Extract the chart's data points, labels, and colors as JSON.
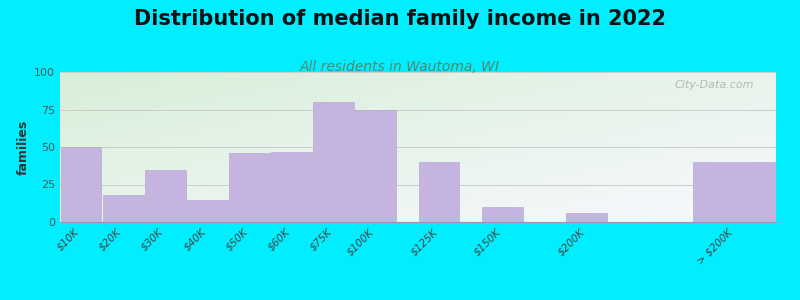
{
  "categories": [
    "$10K",
    "$20K",
    "$30K",
    "$40K",
    "$50K",
    "$60K",
    "$75K",
    "$100K",
    "$125K",
    "$150K",
    "$200K",
    "> $200K"
  ],
  "values": [
    50,
    18,
    35,
    15,
    46,
    47,
    80,
    75,
    40,
    10,
    6,
    40
  ],
  "x_positions": [
    0,
    1,
    2,
    3,
    4,
    5,
    6,
    7,
    8.5,
    10,
    12,
    15
  ],
  "bar_widths": [
    1,
    1,
    1,
    1,
    1,
    1,
    1,
    1,
    1,
    1,
    1,
    2
  ],
  "bar_color": "#c5b3e0",
  "bar_edgecolor": "#b0a0cc",
  "title": "Distribution of median family income in 2022",
  "subtitle": "All residents in Wautoma, WI",
  "ylabel": "families",
  "ylim": [
    0,
    100
  ],
  "yticks": [
    0,
    25,
    50,
    75,
    100
  ],
  "bg_outer": "#00eeff",
  "bg_plot_topleft": "#d8efd8",
  "bg_plot_bottomright": "#f0f0f8",
  "title_fontsize": 15,
  "subtitle_fontsize": 10,
  "subtitle_color": "#558866",
  "watermark": "City-Data.com"
}
